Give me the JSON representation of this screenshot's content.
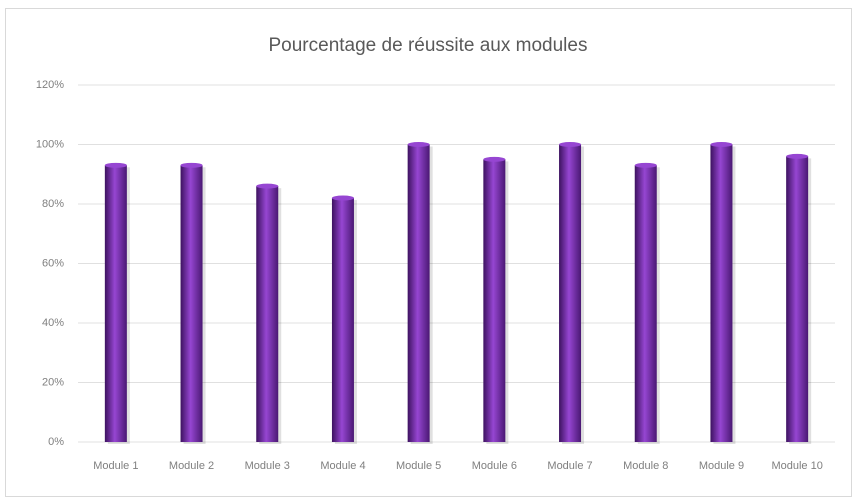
{
  "chart_data": {
    "type": "bar",
    "title": "Pourcentage de réussite aux modules",
    "categories": [
      "Module 1",
      "Module 2",
      "Module 3",
      "Module 4",
      "Module 5",
      "Module 6",
      "Module 7",
      "Module 8",
      "Module 9",
      "Module 10"
    ],
    "values": [
      93,
      93,
      86,
      82,
      100,
      95,
      100,
      93,
      100,
      96
    ],
    "color": "#9646d2",
    "ylim": [
      0,
      120
    ],
    "yticks": [
      {
        "value": 0,
        "label": "0%"
      },
      {
        "value": 20,
        "label": "20%"
      },
      {
        "value": 40,
        "label": "40%"
      },
      {
        "value": 60,
        "label": "60%"
      },
      {
        "value": 80,
        "label": "80%"
      },
      {
        "value": 100,
        "label": "100%"
      },
      {
        "value": 120,
        "label": "120%"
      }
    ],
    "grid": true
  }
}
